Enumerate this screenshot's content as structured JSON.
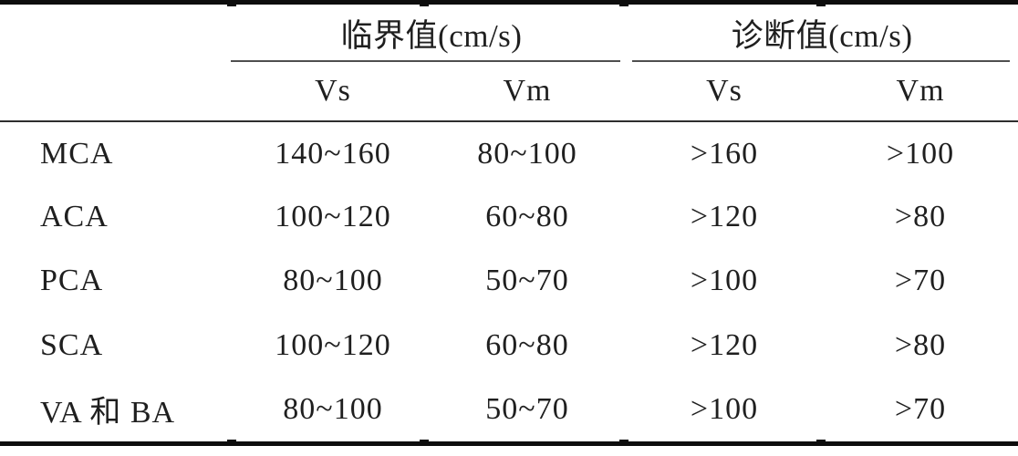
{
  "table": {
    "col_groups": [
      {
        "label": "临界值(cm/s)"
      },
      {
        "label": "诊断值(cm/s)"
      }
    ],
    "sub_headers": [
      "Vs",
      "Vm",
      "Vs",
      "Vm"
    ],
    "rows": [
      {
        "label": "MCA",
        "values": [
          "140~160",
          "80~100",
          ">160",
          ">100"
        ]
      },
      {
        "label": "ACA",
        "values": [
          "100~120",
          "60~80",
          ">120",
          ">80"
        ]
      },
      {
        "label": "PCA",
        "values": [
          "80~100",
          "50~70",
          ">100",
          ">70"
        ]
      },
      {
        "label": "SCA",
        "values": [
          "100~120",
          "60~80",
          ">120",
          ">80"
        ]
      },
      {
        "label": "VA 和 BA",
        "values": [
          "80~100",
          "50~70",
          ">100",
          ">70"
        ]
      }
    ]
  },
  "colors": {
    "text": "#1f1f1f",
    "rule_heavy": "#0d0d0d",
    "rule_mid": "#2e2e2e",
    "rule_light": "#4f4f4f",
    "background": "#ffffff"
  }
}
